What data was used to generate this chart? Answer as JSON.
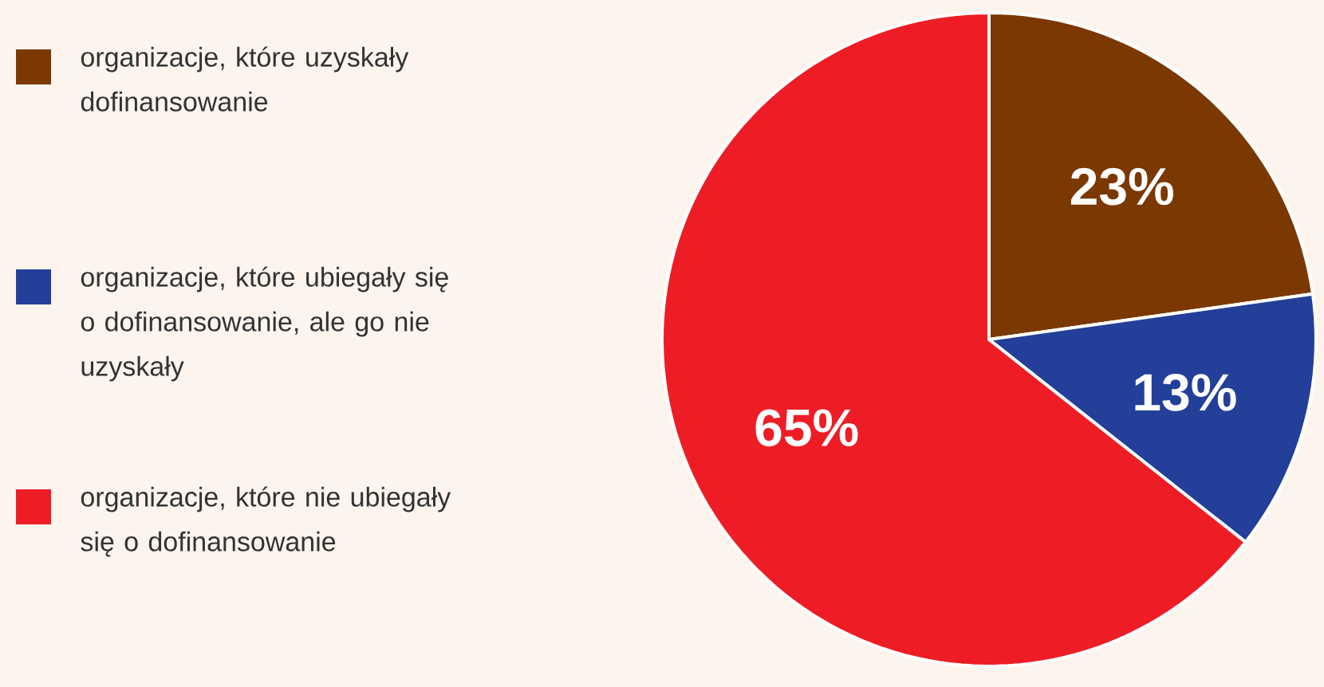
{
  "chart_data": {
    "type": "pie",
    "legend": "left",
    "categories": [
      "organizacje, które uzyskały dofinansowanie",
      "organizacje, które ubiegały się o dofinansowanie, ale go nie uzyskały",
      "organizacje, które nie ubiegały się o dofinansowanie"
    ],
    "values": [
      23,
      13,
      65
    ],
    "value_labels": [
      "23%",
      "13%",
      "65%"
    ],
    "colors": [
      "#7b3800",
      "#233f99",
      "#ee1d25"
    ]
  }
}
